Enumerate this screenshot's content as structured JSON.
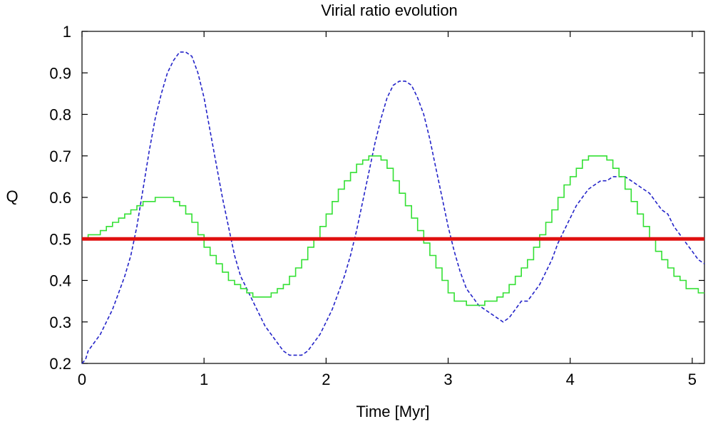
{
  "chart_data": {
    "type": "line",
    "title": "Virial ratio evolution",
    "xlabel": "Time [Myr]",
    "ylabel": "Q",
    "xlim": [
      0,
      5.1
    ],
    "ylim": [
      0.2,
      1.0
    ],
    "xticks": [
      0,
      1,
      2,
      3,
      4,
      5
    ],
    "xtick_labels": [
      "0",
      "1",
      "2",
      "3",
      "4",
      "5"
    ],
    "yticks": [
      0.2,
      0.3,
      0.4,
      0.5,
      0.6,
      0.7,
      0.8,
      0.9,
      1.0
    ],
    "ytick_labels": [
      "0.2",
      "0.3",
      "0.4",
      "0.5",
      "0.6",
      "0.7",
      "0.8",
      "0.9",
      "1"
    ],
    "grid": false,
    "legend": "none",
    "series": [
      {
        "color": "#2323c8",
        "style": "dashed",
        "x": [
          0.0,
          0.03,
          0.05,
          0.1,
          0.15,
          0.2,
          0.25,
          0.3,
          0.35,
          0.4,
          0.45,
          0.5,
          0.55,
          0.6,
          0.65,
          0.7,
          0.75,
          0.8,
          0.85,
          0.9,
          0.95,
          1.0,
          1.05,
          1.1,
          1.15,
          1.2,
          1.25,
          1.3,
          1.35,
          1.4,
          1.45,
          1.5,
          1.55,
          1.6,
          1.65,
          1.7,
          1.75,
          1.8,
          1.85,
          1.9,
          1.95,
          2.0,
          2.05,
          2.1,
          2.15,
          2.2,
          2.25,
          2.3,
          2.35,
          2.4,
          2.45,
          2.5,
          2.55,
          2.6,
          2.65,
          2.7,
          2.75,
          2.8,
          2.85,
          2.9,
          2.95,
          3.0,
          3.05,
          3.1,
          3.15,
          3.2,
          3.25,
          3.3,
          3.35,
          3.4,
          3.45,
          3.5,
          3.55,
          3.6,
          3.65,
          3.7,
          3.75,
          3.8,
          3.85,
          3.9,
          3.95,
          4.0,
          4.05,
          4.1,
          4.15,
          4.2,
          4.25,
          4.3,
          4.35,
          4.4,
          4.45,
          4.5,
          4.55,
          4.6,
          4.65,
          4.7,
          4.75,
          4.8,
          4.85,
          4.9,
          4.95,
          5.0,
          5.05,
          5.1
        ],
        "y": [
          0.2,
          0.21,
          0.23,
          0.25,
          0.27,
          0.3,
          0.33,
          0.37,
          0.41,
          0.46,
          0.53,
          0.62,
          0.71,
          0.79,
          0.85,
          0.9,
          0.93,
          0.95,
          0.95,
          0.94,
          0.9,
          0.84,
          0.76,
          0.68,
          0.6,
          0.53,
          0.46,
          0.41,
          0.38,
          0.35,
          0.32,
          0.29,
          0.27,
          0.25,
          0.23,
          0.22,
          0.22,
          0.22,
          0.23,
          0.25,
          0.27,
          0.3,
          0.33,
          0.37,
          0.41,
          0.46,
          0.52,
          0.59,
          0.66,
          0.73,
          0.79,
          0.84,
          0.87,
          0.88,
          0.88,
          0.87,
          0.84,
          0.8,
          0.74,
          0.67,
          0.6,
          0.53,
          0.47,
          0.42,
          0.38,
          0.36,
          0.34,
          0.33,
          0.32,
          0.31,
          0.3,
          0.31,
          0.33,
          0.35,
          0.35,
          0.37,
          0.39,
          0.42,
          0.45,
          0.49,
          0.52,
          0.55,
          0.58,
          0.6,
          0.62,
          0.63,
          0.64,
          0.64,
          0.65,
          0.65,
          0.65,
          0.64,
          0.63,
          0.62,
          0.61,
          0.59,
          0.57,
          0.56,
          0.53,
          0.51,
          0.49,
          0.47,
          0.45,
          0.44
        ]
      },
      {
        "color": "#33e033",
        "style": "solid",
        "x": [
          0.0,
          0.05,
          0.1,
          0.15,
          0.2,
          0.25,
          0.3,
          0.35,
          0.4,
          0.45,
          0.5,
          0.55,
          0.6,
          0.65,
          0.7,
          0.75,
          0.8,
          0.85,
          0.9,
          0.95,
          1.0,
          1.05,
          1.1,
          1.15,
          1.2,
          1.25,
          1.3,
          1.35,
          1.4,
          1.45,
          1.5,
          1.55,
          1.6,
          1.65,
          1.7,
          1.75,
          1.8,
          1.85,
          1.9,
          1.95,
          2.0,
          2.05,
          2.1,
          2.15,
          2.2,
          2.25,
          2.3,
          2.35,
          2.4,
          2.45,
          2.5,
          2.55,
          2.6,
          2.65,
          2.7,
          2.75,
          2.8,
          2.85,
          2.9,
          2.95,
          3.0,
          3.05,
          3.1,
          3.15,
          3.2,
          3.25,
          3.3,
          3.35,
          3.4,
          3.45,
          3.5,
          3.55,
          3.6,
          3.65,
          3.7,
          3.75,
          3.8,
          3.85,
          3.9,
          3.95,
          4.0,
          4.05,
          4.1,
          4.15,
          4.2,
          4.25,
          4.3,
          4.35,
          4.4,
          4.45,
          4.5,
          4.55,
          4.6,
          4.65,
          4.7,
          4.75,
          4.8,
          4.85,
          4.9,
          4.95,
          5.0,
          5.05,
          5.1
        ],
        "y": [
          0.5,
          0.51,
          0.51,
          0.52,
          0.53,
          0.54,
          0.55,
          0.56,
          0.57,
          0.58,
          0.59,
          0.59,
          0.6,
          0.6,
          0.6,
          0.59,
          0.58,
          0.56,
          0.54,
          0.51,
          0.48,
          0.46,
          0.44,
          0.42,
          0.4,
          0.39,
          0.38,
          0.37,
          0.36,
          0.36,
          0.36,
          0.37,
          0.38,
          0.39,
          0.41,
          0.43,
          0.45,
          0.48,
          0.5,
          0.53,
          0.56,
          0.59,
          0.62,
          0.64,
          0.66,
          0.68,
          0.69,
          0.7,
          0.7,
          0.69,
          0.67,
          0.64,
          0.61,
          0.58,
          0.55,
          0.52,
          0.49,
          0.46,
          0.43,
          0.4,
          0.37,
          0.35,
          0.35,
          0.34,
          0.34,
          0.34,
          0.35,
          0.35,
          0.36,
          0.37,
          0.39,
          0.41,
          0.43,
          0.45,
          0.48,
          0.51,
          0.54,
          0.57,
          0.6,
          0.63,
          0.65,
          0.67,
          0.69,
          0.7,
          0.7,
          0.7,
          0.69,
          0.67,
          0.65,
          0.62,
          0.59,
          0.56,
          0.53,
          0.5,
          0.47,
          0.45,
          0.43,
          0.41,
          0.4,
          0.38,
          0.38,
          0.37,
          0.37
        ]
      },
      {
        "color": "#e01010",
        "style": "solid",
        "x": [
          0,
          5.1
        ],
        "y": [
          0.5,
          0.5
        ]
      }
    ]
  }
}
